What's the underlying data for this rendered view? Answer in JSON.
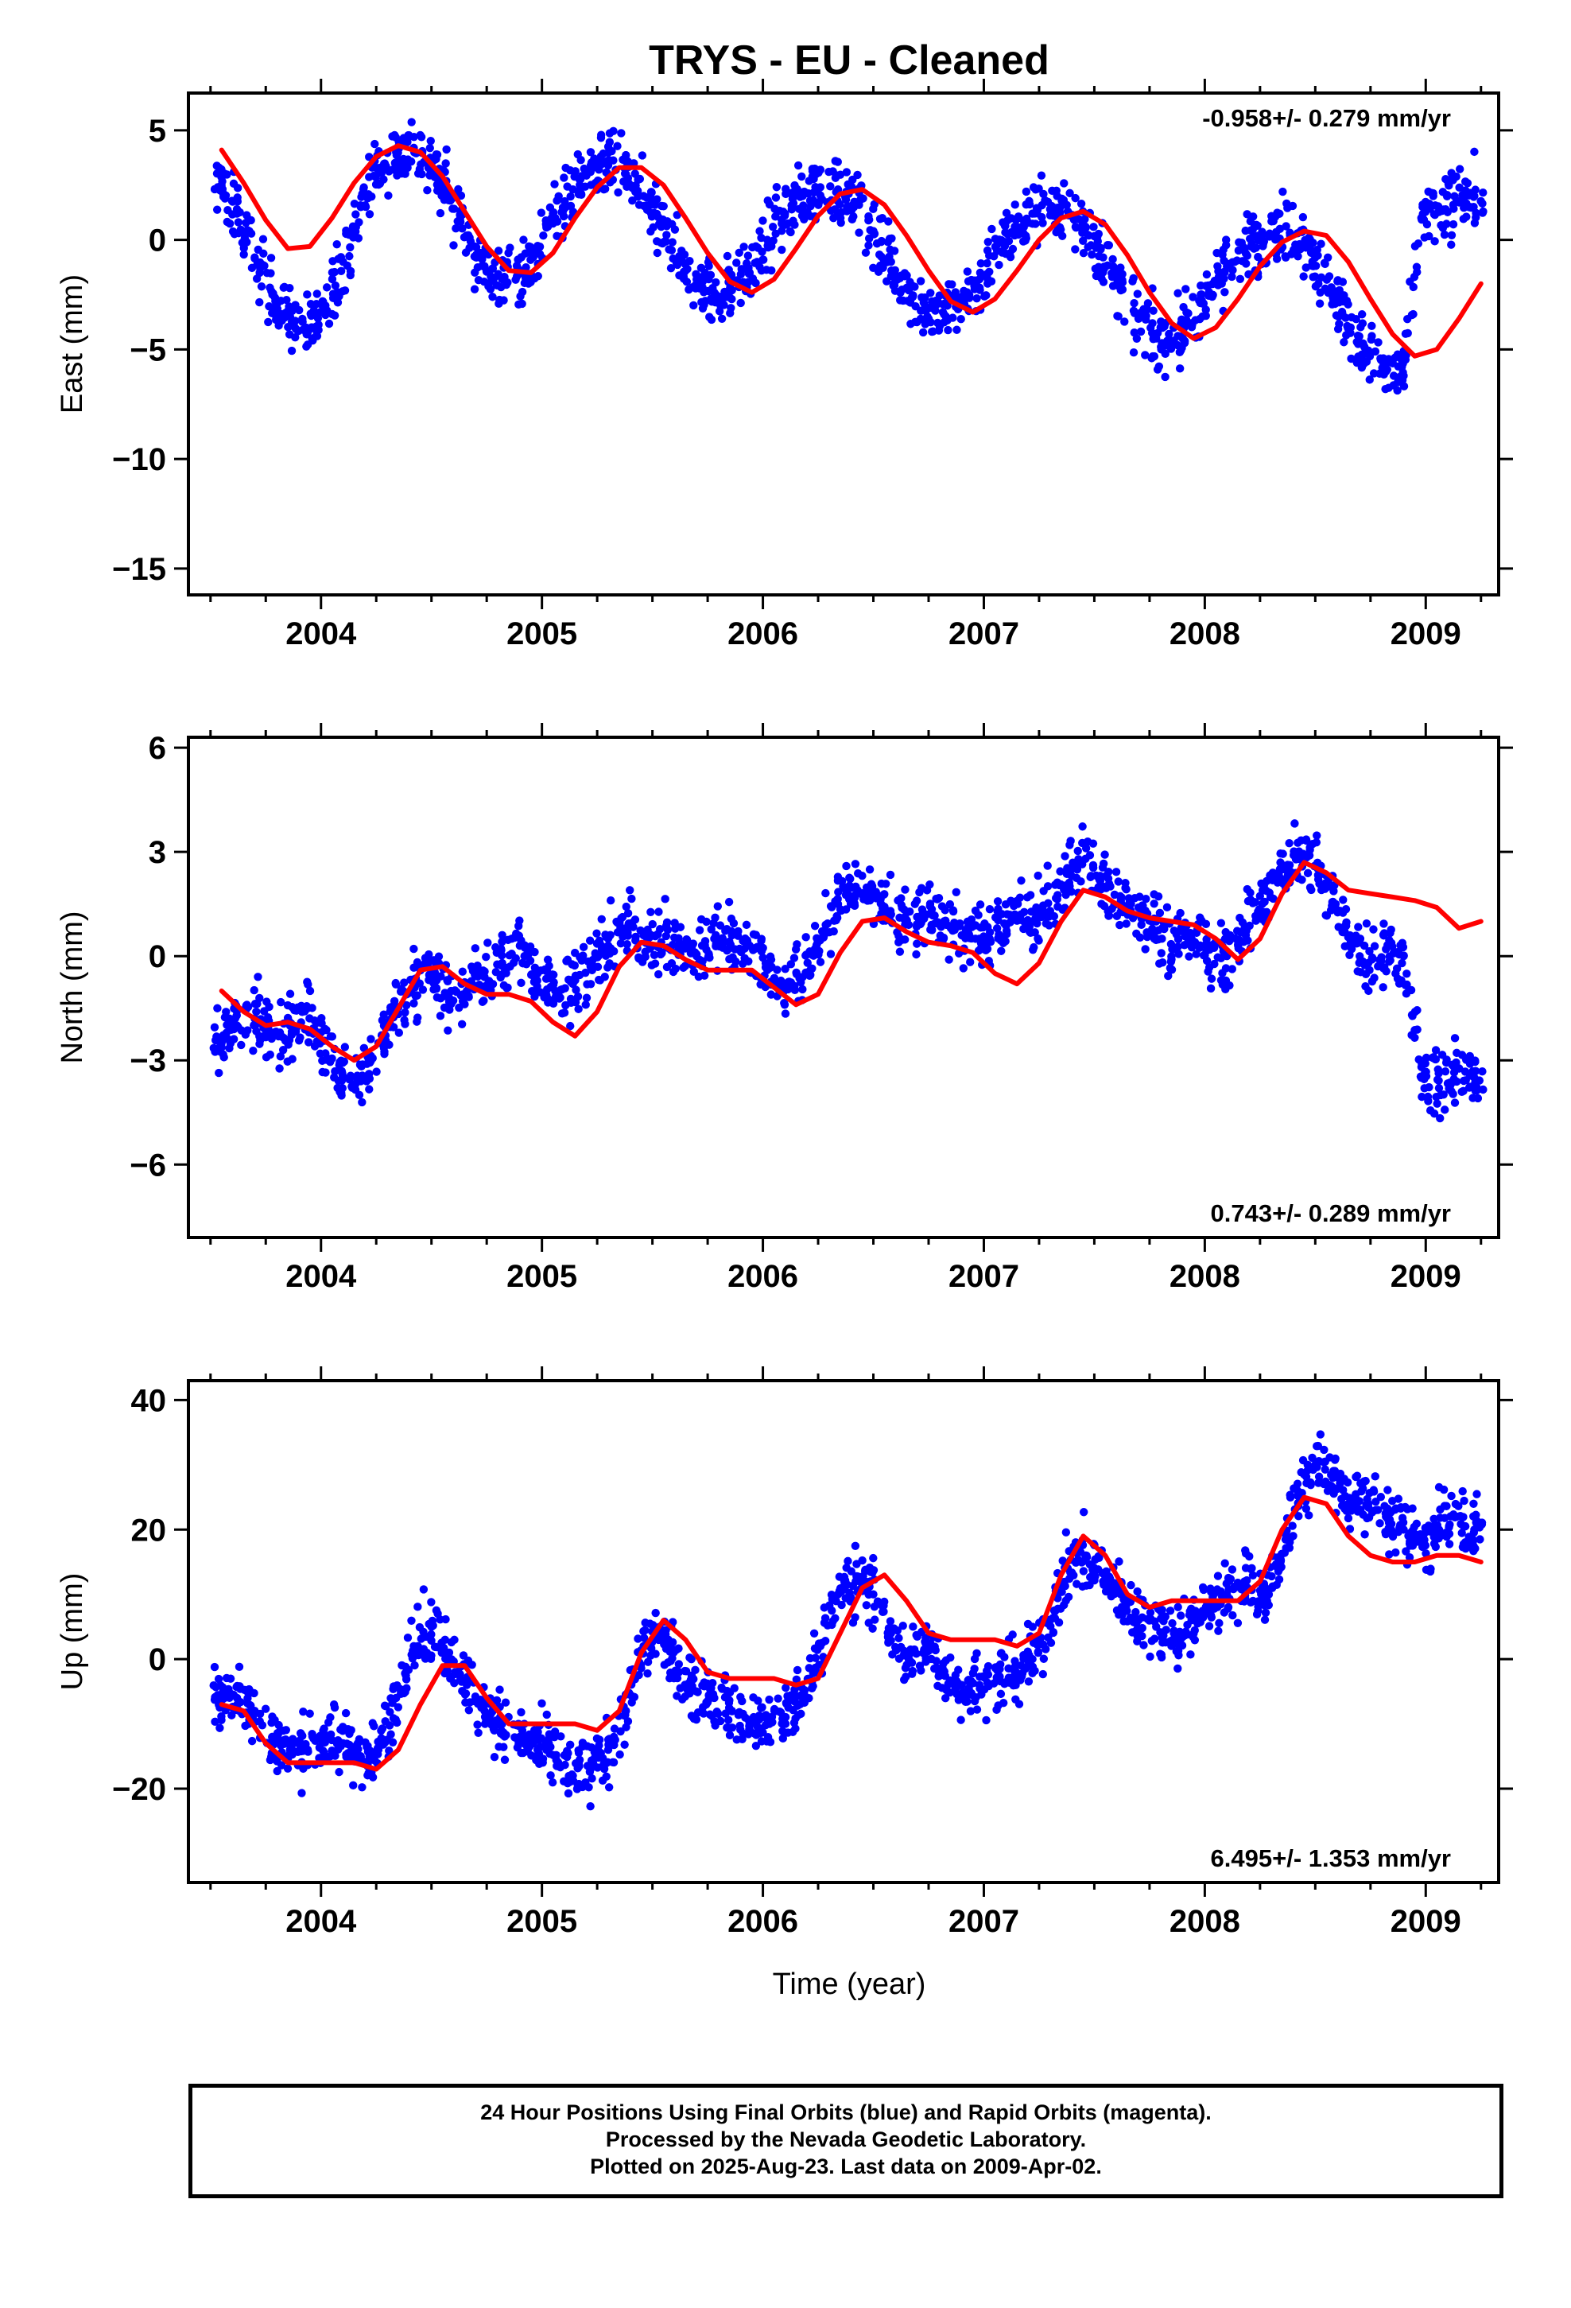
{
  "figure": {
    "title": "TRYS  - EU - Cleaned",
    "xlabel": "Time (year)"
  },
  "footer": {
    "line1": "24 Hour Positions Using Final Orbits (blue) and Rapid Orbits (magenta).",
    "line2": "Processed by the Nevada Geodetic Laboratory.",
    "line3": "Plotted on 2025-Aug-23. Last data on 2009-Apr-02."
  },
  "colors": {
    "points": "#0000ff",
    "fit": "#ff0000",
    "axis": "#000000"
  },
  "chart_data": [
    {
      "type": "scatter",
      "ylabel": "East (mm)",
      "rate_label": "-0.958+/- 0.279 mm/yr",
      "rate_position": "top-right",
      "xlim": [
        2003.4,
        2009.33
      ],
      "ylim": [
        -16.2,
        6.7
      ],
      "x_ticks": [
        2004,
        2005,
        2006,
        2007,
        2008,
        2009
      ],
      "x_tick_labels": [
        "2004",
        "2005",
        "2006",
        "2007",
        "2008",
        "2009"
      ],
      "y_ticks": [
        5,
        0,
        -5,
        -10,
        -15
      ],
      "y_tick_labels": [
        "5",
        "0",
        "−10",
        "−15"
      ],
      "y_tick_labels_full": [
        "5",
        "0",
        "−5",
        "−10",
        "−15"
      ],
      "series": [
        {
          "kind": "points",
          "x": [
            2003.55,
            2003.62,
            2003.7,
            2003.78,
            2003.86,
            2003.94,
            2004.02,
            2004.1,
            2004.18,
            2004.26,
            2004.34,
            2004.42,
            2004.5,
            2004.58,
            2004.66,
            2004.74,
            2004.82,
            2004.9,
            2004.98,
            2005.06,
            2005.14,
            2005.22,
            2005.3,
            2005.38,
            2005.46,
            2005.54,
            2005.62,
            2005.7,
            2005.78,
            2005.86,
            2005.94,
            2006.02,
            2006.1,
            2006.18,
            2006.26,
            2006.34,
            2006.42,
            2006.5,
            2006.58,
            2006.66,
            2006.74,
            2006.82,
            2006.9,
            2006.98,
            2007.06,
            2007.14,
            2007.22,
            2007.3,
            2007.38,
            2007.46,
            2007.54,
            2007.62,
            2007.7,
            2007.78,
            2007.86,
            2007.94,
            2008.02,
            2008.1,
            2008.18,
            2008.26,
            2008.34,
            2008.42,
            2008.5,
            2008.58,
            2008.66,
            2008.74,
            2008.82,
            2008.9,
            2008.98,
            2009.06,
            2009.14,
            2009.22
          ],
          "y": [
            2.5,
            1.2,
            -0.8,
            -2.5,
            -3.5,
            -4.2,
            -3.0,
            -1.0,
            1.5,
            3.2,
            4.0,
            4.2,
            3.5,
            2.0,
            0.2,
            -1.2,
            -1.8,
            -1.5,
            -0.5,
            1.0,
            2.3,
            3.1,
            3.4,
            3.0,
            2.0,
            0.6,
            -0.8,
            -1.8,
            -2.4,
            -2.3,
            -1.5,
            0.0,
            1.2,
            2.0,
            2.4,
            2.3,
            1.6,
            0.4,
            -1.0,
            -2.3,
            -3.2,
            -3.4,
            -2.8,
            -1.8,
            -0.5,
            0.6,
            1.2,
            1.4,
            1.3,
            0.6,
            -0.8,
            -2.3,
            -3.6,
            -4.5,
            -4.6,
            -3.8,
            -2.4,
            -1.2,
            -0.4,
            0.2,
            0.5,
            0.3,
            -0.8,
            -2.4,
            -4.0,
            -5.2,
            -6.0,
            -6.2,
            1.0,
            1.3,
            1.8,
            2.0
          ]
        },
        {
          "kind": "fit",
          "x": [
            2003.55,
            2003.65,
            2003.75,
            2003.85,
            2003.95,
            2004.05,
            2004.15,
            2004.25,
            2004.35,
            2004.45,
            2004.55,
            2004.65,
            2004.75,
            2004.85,
            2004.95,
            2005.05,
            2005.15,
            2005.25,
            2005.35,
            2005.45,
            2005.55,
            2005.65,
            2005.75,
            2005.85,
            2005.95,
            2006.05,
            2006.15,
            2006.25,
            2006.35,
            2006.45,
            2006.55,
            2006.65,
            2006.75,
            2006.85,
            2006.95,
            2007.05,
            2007.15,
            2007.25,
            2007.35,
            2007.45,
            2007.55,
            2007.65,
            2007.75,
            2007.85,
            2007.95,
            2008.05,
            2008.15,
            2008.25,
            2008.35,
            2008.45,
            2008.55,
            2008.65,
            2008.75,
            2008.85,
            2008.95,
            2009.05,
            2009.15,
            2009.25
          ],
          "y": [
            4.1,
            2.6,
            0.9,
            -0.4,
            -0.3,
            1.0,
            2.6,
            3.8,
            4.3,
            4.0,
            2.9,
            1.3,
            -0.3,
            -1.4,
            -1.5,
            -0.6,
            1.0,
            2.4,
            3.3,
            3.3,
            2.5,
            1.0,
            -0.6,
            -1.9,
            -2.4,
            -1.8,
            -0.4,
            1.1,
            2.1,
            2.3,
            1.6,
            0.2,
            -1.4,
            -2.8,
            -3.3,
            -2.7,
            -1.4,
            0.0,
            1.0,
            1.3,
            0.7,
            -0.7,
            -2.4,
            -3.8,
            -4.5,
            -4.0,
            -2.7,
            -1.2,
            -0.1,
            0.4,
            0.2,
            -1.0,
            -2.7,
            -4.3,
            -5.3,
            -5.0,
            -3.6,
            -2.0
          ]
        }
      ]
    },
    {
      "type": "scatter",
      "ylabel": "North (mm)",
      "rate_label": "0.743+/- 0.289 mm/yr",
      "rate_position": "bottom-right",
      "xlim": [
        2003.4,
        2009.33
      ],
      "ylim": [
        -8.1,
        6.3
      ],
      "x_ticks": [
        2004,
        2005,
        2006,
        2007,
        2008,
        2009
      ],
      "x_tick_labels": [
        "2004",
        "2005",
        "2006",
        "2007",
        "2008",
        "2009"
      ],
      "y_ticks": [
        6,
        3,
        0,
        -3,
        -6
      ],
      "y_tick_labels_full": [
        "6",
        "3",
        "0",
        "−3",
        "−6"
      ],
      "series": [
        {
          "kind": "points",
          "x": [
            2003.55,
            2003.62,
            2003.7,
            2003.78,
            2003.86,
            2003.94,
            2004.02,
            2004.1,
            2004.18,
            2004.26,
            2004.34,
            2004.42,
            2004.5,
            2004.58,
            2004.66,
            2004.74,
            2004.82,
            2004.9,
            2004.98,
            2005.06,
            2005.14,
            2005.22,
            2005.3,
            2005.38,
            2005.46,
            2005.54,
            2005.62,
            2005.7,
            2005.78,
            2005.86,
            2005.94,
            2006.02,
            2006.1,
            2006.18,
            2006.26,
            2006.34,
            2006.42,
            2006.5,
            2006.58,
            2006.66,
            2006.74,
            2006.82,
            2006.9,
            2006.98,
            2007.06,
            2007.14,
            2007.22,
            2007.3,
            2007.38,
            2007.46,
            2007.54,
            2007.62,
            2007.7,
            2007.78,
            2007.86,
            2007.94,
            2008.02,
            2008.1,
            2008.18,
            2008.26,
            2008.34,
            2008.42,
            2008.5,
            2008.58,
            2008.66,
            2008.74,
            2008.82,
            2008.9,
            2008.98,
            2009.06,
            2009.14,
            2009.22
          ],
          "y": [
            -2.5,
            -2.0,
            -1.8,
            -2.2,
            -2.0,
            -1.5,
            -2.8,
            -3.5,
            -3.6,
            -2.5,
            -1.5,
            -0.8,
            -0.5,
            -1.2,
            -1.0,
            -0.6,
            -0.2,
            0.3,
            -0.5,
            -1.0,
            -0.8,
            -0.3,
            0.3,
            0.8,
            0.6,
            0.4,
            0.2,
            0.0,
            0.5,
            0.6,
            0.3,
            -0.4,
            -0.8,
            -0.6,
            0.5,
            1.5,
            2.0,
            1.8,
            1.2,
            0.9,
            1.2,
            1.0,
            0.6,
            0.5,
            0.8,
            1.2,
            1.0,
            1.3,
            2.4,
            2.8,
            2.0,
            1.6,
            1.4,
            1.0,
            0.2,
            0.5,
            0.3,
            0.0,
            0.8,
            1.5,
            2.5,
            3.0,
            2.6,
            1.5,
            0.4,
            -0.2,
            0.2,
            0.0,
            -3.5,
            -3.8,
            -3.2,
            -3.5
          ]
        },
        {
          "kind": "fit",
          "x": [
            2003.55,
            2003.65,
            2003.75,
            2003.85,
            2003.95,
            2004.05,
            2004.15,
            2004.25,
            2004.35,
            2004.45,
            2004.55,
            2004.65,
            2004.75,
            2004.85,
            2004.95,
            2005.05,
            2005.15,
            2005.25,
            2005.35,
            2005.45,
            2005.55,
            2005.65,
            2005.75,
            2005.85,
            2005.95,
            2006.05,
            2006.15,
            2006.25,
            2006.35,
            2006.45,
            2006.55,
            2006.65,
            2006.75,
            2006.85,
            2006.95,
            2007.05,
            2007.15,
            2007.25,
            2007.35,
            2007.45,
            2007.55,
            2007.65,
            2007.75,
            2007.85,
            2007.95,
            2008.05,
            2008.15,
            2008.25,
            2008.35,
            2008.45,
            2008.55,
            2008.65,
            2008.75,
            2008.85,
            2008.95,
            2009.05,
            2009.15,
            2009.25
          ],
          "y": [
            -1.0,
            -1.6,
            -2.0,
            -1.9,
            -2.1,
            -2.6,
            -3.0,
            -2.6,
            -1.5,
            -0.4,
            -0.3,
            -0.8,
            -1.1,
            -1.1,
            -1.3,
            -1.9,
            -2.3,
            -1.6,
            -0.3,
            0.4,
            0.3,
            -0.1,
            -0.4,
            -0.4,
            -0.4,
            -0.9,
            -1.4,
            -1.1,
            0.1,
            1.0,
            1.1,
            0.7,
            0.4,
            0.3,
            0.1,
            -0.5,
            -0.8,
            -0.2,
            1.0,
            1.9,
            1.7,
            1.3,
            1.1,
            1.0,
            0.9,
            0.5,
            -0.1,
            0.5,
            1.8,
            2.7,
            2.4,
            1.9,
            1.8,
            1.7,
            1.6,
            1.4,
            0.8,
            1.0
          ]
        }
      ]
    },
    {
      "type": "scatter",
      "ylabel": "Up (mm)",
      "rate_label": "6.495+/- 1.353 mm/yr",
      "rate_position": "bottom-right",
      "xlim": [
        2003.4,
        2009.33
      ],
      "ylim": [
        -34.5,
        43
      ],
      "x_ticks": [
        2004,
        2005,
        2006,
        2007,
        2008,
        2009
      ],
      "x_tick_labels": [
        "2004",
        "2005",
        "2006",
        "2007",
        "2008",
        "2009"
      ],
      "y_ticks": [
        40,
        20,
        0,
        -20
      ],
      "y_tick_labels_full": [
        "40",
        "20",
        "0",
        "−20"
      ],
      "series": [
        {
          "kind": "points",
          "x": [
            2003.55,
            2003.62,
            2003.7,
            2003.78,
            2003.86,
            2003.94,
            2004.02,
            2004.1,
            2004.18,
            2004.26,
            2004.34,
            2004.42,
            2004.5,
            2004.58,
            2004.66,
            2004.74,
            2004.82,
            2004.9,
            2004.98,
            2005.06,
            2005.14,
            2005.22,
            2005.3,
            2005.38,
            2005.46,
            2005.54,
            2005.62,
            2005.7,
            2005.78,
            2005.86,
            2005.94,
            2006.02,
            2006.1,
            2006.18,
            2006.26,
            2006.34,
            2006.42,
            2006.5,
            2006.58,
            2006.66,
            2006.74,
            2006.82,
            2006.9,
            2006.98,
            2007.06,
            2007.14,
            2007.22,
            2007.3,
            2007.38,
            2007.46,
            2007.54,
            2007.62,
            2007.7,
            2007.78,
            2007.86,
            2007.94,
            2008.02,
            2008.1,
            2008.18,
            2008.26,
            2008.34,
            2008.42,
            2008.5,
            2008.58,
            2008.66,
            2008.74,
            2008.82,
            2008.9,
            2008.98,
            2009.06,
            2009.14,
            2009.22
          ],
          "y": [
            -6,
            -6,
            -8,
            -12,
            -14,
            -14,
            -12,
            -13,
            -15,
            -14,
            -6,
            2,
            5,
            1,
            -4,
            -8,
            -10,
            -12,
            -14,
            -15,
            -18,
            -17,
            -14,
            -8,
            2,
            4,
            -2,
            -5,
            -6,
            -8,
            -10,
            -10,
            -9,
            -6,
            2,
            10,
            12,
            10,
            4,
            0,
            2,
            -2,
            -4,
            -4,
            -3,
            -2,
            0,
            6,
            14,
            16,
            12,
            10,
            6,
            5,
            4,
            6,
            8,
            10,
            12,
            10,
            14,
            26,
            30,
            28,
            24,
            24,
            22,
            20,
            18,
            20,
            22,
            20
          ]
        },
        {
          "kind": "fit",
          "x": [
            2003.55,
            2003.65,
            2003.75,
            2003.85,
            2003.95,
            2004.05,
            2004.15,
            2004.25,
            2004.35,
            2004.45,
            2004.55,
            2004.65,
            2004.75,
            2004.85,
            2004.95,
            2005.05,
            2005.15,
            2005.25,
            2005.35,
            2005.45,
            2005.55,
            2005.65,
            2005.75,
            2005.85,
            2005.95,
            2006.05,
            2006.15,
            2006.25,
            2006.35,
            2006.45,
            2006.55,
            2006.65,
            2006.75,
            2006.85,
            2006.95,
            2007.05,
            2007.15,
            2007.25,
            2007.35,
            2007.45,
            2007.55,
            2007.65,
            2007.75,
            2007.85,
            2007.95,
            2008.05,
            2008.15,
            2008.25,
            2008.35,
            2008.45,
            2008.55,
            2008.65,
            2008.75,
            2008.85,
            2008.95,
            2009.05,
            2009.15,
            2009.25
          ],
          "y": [
            -7,
            -8,
            -13,
            -16,
            -16,
            -16,
            -16,
            -17,
            -14,
            -7,
            -1,
            -1,
            -6,
            -10,
            -10,
            -10,
            -10,
            -11,
            -8,
            1,
            6,
            3,
            -2,
            -3,
            -3,
            -3,
            -4,
            -3,
            4,
            11,
            13,
            9,
            4,
            3,
            3,
            3,
            2,
            4,
            13,
            19,
            16,
            10,
            8,
            9,
            9,
            9,
            9,
            12,
            20,
            25,
            24,
            19,
            16,
            15,
            15,
            16,
            16,
            15
          ]
        }
      ]
    }
  ]
}
